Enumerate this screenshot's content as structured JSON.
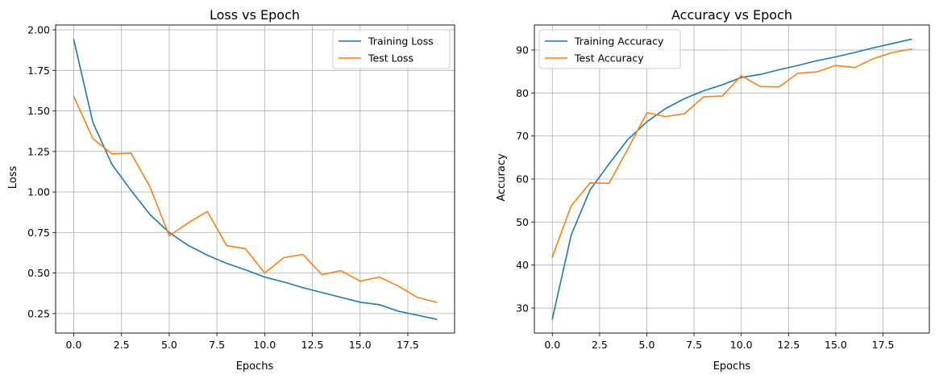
{
  "chart_data": [
    {
      "type": "line",
      "title": "Loss vs Epoch",
      "xlabel": "Epochs",
      "ylabel": "Loss",
      "xlim": [
        -0.95,
        19.95
      ],
      "ylim": [
        0.13,
        2.03
      ],
      "xticks": [
        0.0,
        2.5,
        5.0,
        7.5,
        10.0,
        12.5,
        15.0,
        17.5
      ],
      "xtick_labels": [
        "0.0",
        "2.5",
        "5.0",
        "7.5",
        "10.0",
        "12.5",
        "15.0",
        "17.5"
      ],
      "yticks": [
        0.25,
        0.5,
        0.75,
        1.0,
        1.25,
        1.5,
        1.75,
        2.0
      ],
      "ytick_labels": [
        "0.25",
        "0.50",
        "0.75",
        "1.00",
        "1.25",
        "1.50",
        "1.75",
        "2.00"
      ],
      "grid": true,
      "legend_position": "top-right",
      "x": [
        0,
        1,
        2,
        3,
        4,
        5,
        6,
        7,
        8,
        9,
        10,
        11,
        12,
        13,
        14,
        15,
        16,
        17,
        18,
        19
      ],
      "series": [
        {
          "name": "Training Loss",
          "color": "#1f77b4",
          "values": [
            1.94,
            1.43,
            1.17,
            1.01,
            0.86,
            0.75,
            0.67,
            0.61,
            0.56,
            0.52,
            0.475,
            0.445,
            0.41,
            0.38,
            0.35,
            0.32,
            0.305,
            0.265,
            0.24,
            0.215
          ]
        },
        {
          "name": "Test Loss",
          "color": "#ff7f0e",
          "values": [
            1.59,
            1.33,
            1.235,
            1.24,
            1.03,
            0.73,
            0.81,
            0.88,
            0.67,
            0.65,
            0.5,
            0.595,
            0.615,
            0.49,
            0.515,
            0.45,
            0.475,
            0.42,
            0.35,
            0.32
          ]
        }
      ]
    },
    {
      "type": "line",
      "title": "Accuracy vs Epoch",
      "xlabel": "Epochs",
      "ylabel": "Accuracy",
      "xlim": [
        -0.95,
        19.95
      ],
      "ylim": [
        24.2,
        95.8
      ],
      "xticks": [
        0.0,
        2.5,
        5.0,
        7.5,
        10.0,
        12.5,
        15.0,
        17.5
      ],
      "xtick_labels": [
        "0.0",
        "2.5",
        "5.0",
        "7.5",
        "10.0",
        "12.5",
        "15.0",
        "17.5"
      ],
      "yticks": [
        30,
        40,
        50,
        60,
        70,
        80,
        90
      ],
      "ytick_labels": [
        "30",
        "40",
        "50",
        "60",
        "70",
        "80",
        "90"
      ],
      "grid": true,
      "legend_position": "top-left",
      "x": [
        0,
        1,
        2,
        3,
        4,
        5,
        6,
        7,
        8,
        9,
        10,
        11,
        12,
        13,
        14,
        15,
        16,
        17,
        18,
        19
      ],
      "series": [
        {
          "name": "Training Accuracy",
          "color": "#1f77b4",
          "values": [
            27.5,
            47.0,
            57.5,
            63.5,
            69.2,
            73.3,
            76.4,
            78.7,
            80.5,
            81.9,
            83.6,
            84.3,
            85.4,
            86.4,
            87.5,
            88.4,
            89.4,
            90.5,
            91.5,
            92.5
          ]
        },
        {
          "name": "Test Accuracy",
          "color": "#ff7f0e",
          "values": [
            41.9,
            53.8,
            59.1,
            59.0,
            67.0,
            75.4,
            74.5,
            75.2,
            79.1,
            79.3,
            84.0,
            81.5,
            81.4,
            84.6,
            84.9,
            86.4,
            85.9,
            88.0,
            89.4,
            90.2
          ]
        }
      ]
    }
  ]
}
